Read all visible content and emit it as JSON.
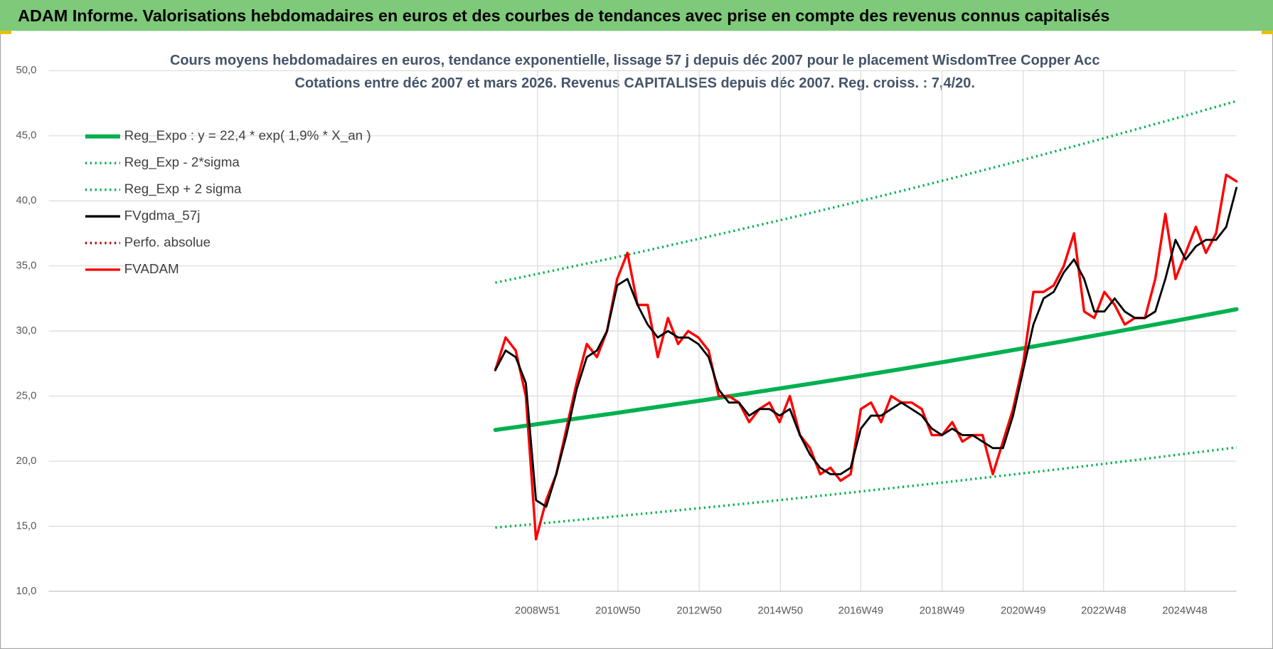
{
  "page_title": "ADAM Informe. Valorisations hebdomadaires en euros et des courbes de tendances avec prise en compte des revenus connus capitalisés",
  "chart_data": {
    "type": "line",
    "title": [
      "Cours moyens hebdomadaires en euros, tendance exponentielle, lissage 57 j depuis déc 2007 pour le placement WisdomTree Copper Acc",
      "Cotations entre déc 2007 et mars 2026. Revenus CAPITALISES depuis déc 2007. Reg. croiss. : 7,4/20."
    ],
    "xlim": [
      "1996W49",
      "2026W10"
    ],
    "xticks": [
      "2008W51",
      "2010W50",
      "2012W50",
      "2014W50",
      "2016W49",
      "2018W49",
      "2020W49",
      "2022W48",
      "2024W48"
    ],
    "ylim": [
      10,
      50
    ],
    "yticks": [
      {
        "value": 10,
        "label": "10,0"
      },
      {
        "value": 15,
        "label": "15,0"
      },
      {
        "value": 20,
        "label": "20,0"
      },
      {
        "value": 25,
        "label": "25,0"
      },
      {
        "value": 30,
        "label": "30,0"
      },
      {
        "value": 35,
        "label": "35,0"
      },
      {
        "value": 40,
        "label": "40,0"
      },
      {
        "value": 45,
        "label": "45,0"
      },
      {
        "value": 50,
        "label": "50,0"
      }
    ],
    "grid": true,
    "legend": "top-left",
    "series": [
      {
        "name": "Reg_Expo : y = 22,4 * exp( 1,9% *  X_an )",
        "color": "#00b050",
        "style": "thick",
        "x": [
          "2007W49",
          "2008W49",
          "2009W49",
          "2010W49",
          "2011W49",
          "2012W49",
          "2013W49",
          "2014W49",
          "2015W49",
          "2016W49",
          "2017W49",
          "2018W49",
          "2019W49",
          "2020W49",
          "2021W49",
          "2022W49",
          "2023W49",
          "2024W49",
          "2025W49",
          "2026W10"
        ],
        "values": [
          22.4,
          22.83,
          23.27,
          23.71,
          24.17,
          24.63,
          25.1,
          25.58,
          26.07,
          26.57,
          27.08,
          27.6,
          28.13,
          28.67,
          29.22,
          29.78,
          30.35,
          30.93,
          31.52,
          31.67
        ]
      },
      {
        "name": "Reg_Exp - 2*sigma",
        "color": "#00b050",
        "style": "dotted",
        "x": [
          "2007W49",
          "2008W49",
          "2009W49",
          "2010W49",
          "2011W49",
          "2012W49",
          "2013W49",
          "2014W49",
          "2015W49",
          "2016W49",
          "2017W49",
          "2018W49",
          "2019W49",
          "2020W49",
          "2021W49",
          "2022W49",
          "2023W49",
          "2024W49",
          "2025W49",
          "2026W10"
        ],
        "values": [
          14.9,
          15.18,
          15.47,
          15.77,
          16.07,
          16.38,
          16.69,
          17.01,
          17.34,
          17.67,
          18.01,
          18.35,
          18.71,
          19.07,
          19.43,
          19.8,
          20.18,
          20.57,
          20.96,
          21.06
        ]
      },
      {
        "name": "Reg_Exp + 2 sigma",
        "color": "#00b050",
        "style": "dotted",
        "x": [
          "2007W49",
          "2008W49",
          "2009W49",
          "2010W49",
          "2011W49",
          "2012W49",
          "2013W49",
          "2014W49",
          "2015W49",
          "2016W49",
          "2017W49",
          "2018W49",
          "2019W49",
          "2020W49",
          "2021W49",
          "2022W49",
          "2023W49",
          "2024W49",
          "2025W49",
          "2026W10"
        ],
        "values": [
          33.71,
          34.36,
          35.02,
          35.68,
          36.38,
          37.07,
          37.78,
          38.5,
          39.24,
          39.99,
          40.76,
          41.54,
          42.34,
          43.15,
          43.98,
          44.82,
          45.68,
          46.55,
          47.44,
          47.66
        ]
      },
      {
        "name": "FVgdma_57j",
        "color": "#000000",
        "style": "solid",
        "x": [
          "2007W49",
          "2008W10",
          "2008W23",
          "2008W36",
          "2008W49",
          "2009W10",
          "2009W23",
          "2009W36",
          "2009W49",
          "2010W10",
          "2010W23",
          "2010W36",
          "2010W49",
          "2011W10",
          "2011W23",
          "2011W36",
          "2011W49",
          "2012W10",
          "2012W23",
          "2012W36",
          "2012W49",
          "2013W10",
          "2013W23",
          "2013W36",
          "2013W49",
          "2014W10",
          "2014W23",
          "2014W36",
          "2014W49",
          "2015W10",
          "2015W23",
          "2015W36",
          "2015W49",
          "2016W10",
          "2016W23",
          "2016W36",
          "2016W49",
          "2017W10",
          "2017W23",
          "2017W36",
          "2017W49",
          "2018W10",
          "2018W23",
          "2018W36",
          "2018W49",
          "2019W10",
          "2019W23",
          "2019W36",
          "2019W49",
          "2020W10",
          "2020W23",
          "2020W36",
          "2020W49",
          "2021W10",
          "2021W23",
          "2021W36",
          "2021W49",
          "2022W10",
          "2022W23",
          "2022W36",
          "2022W49",
          "2023W10",
          "2023W23",
          "2023W36",
          "2023W49",
          "2024W10",
          "2024W23",
          "2024W36",
          "2024W49",
          "2025W10",
          "2025W23",
          "2025W36",
          "2025W49",
          "2026W10"
        ],
        "values": [
          27,
          28.5,
          28,
          26,
          17,
          16.5,
          19,
          22,
          25.5,
          28,
          28.5,
          30,
          33.5,
          34,
          32,
          30.5,
          29.5,
          30,
          29.5,
          29.5,
          29,
          28,
          25.5,
          24.5,
          24.5,
          23.5,
          24,
          24,
          23.5,
          24,
          22,
          20.5,
          19.5,
          19,
          19,
          19.5,
          22.5,
          23.5,
          23.5,
          24,
          24.5,
          24,
          23.5,
          22.5,
          22,
          22.5,
          22,
          22,
          21.5,
          21,
          21,
          23.5,
          27,
          30.5,
          32.5,
          33,
          34.5,
          35.5,
          34,
          31.5,
          31.5,
          32.5,
          31.5,
          31,
          31,
          31.5,
          34,
          37,
          35.5,
          36.5,
          37,
          37,
          38,
          41
        ]
      },
      {
        "name": "Perfo. absolue",
        "color": "#c00000",
        "style": "dotted"
      },
      {
        "name": "FVADAM",
        "color": "#ff0000",
        "style": "solid",
        "x": [
          "2007W49",
          "2008W10",
          "2008W23",
          "2008W36",
          "2008W49",
          "2009W10",
          "2009W23",
          "2009W36",
          "2009W49",
          "2010W10",
          "2010W23",
          "2010W36",
          "2010W49",
          "2011W10",
          "2011W23",
          "2011W36",
          "2011W49",
          "2012W10",
          "2012W23",
          "2012W36",
          "2012W49",
          "2013W10",
          "2013W23",
          "2013W36",
          "2013W49",
          "2014W10",
          "2014W23",
          "2014W36",
          "2014W49",
          "2015W10",
          "2015W23",
          "2015W36",
          "2015W49",
          "2016W10",
          "2016W23",
          "2016W36",
          "2016W49",
          "2017W10",
          "2017W23",
          "2017W36",
          "2017W49",
          "2018W10",
          "2018W23",
          "2018W36",
          "2018W49",
          "2019W10",
          "2019W23",
          "2019W36",
          "2019W49",
          "2020W10",
          "2020W23",
          "2020W36",
          "2020W49",
          "2021W10",
          "2021W23",
          "2021W36",
          "2021W49",
          "2022W10",
          "2022W23",
          "2022W36",
          "2022W49",
          "2023W10",
          "2023W23",
          "2023W36",
          "2023W49",
          "2024W10",
          "2024W23",
          "2024W36",
          "2024W49",
          "2025W10",
          "2025W23",
          "2025W36",
          "2025W49",
          "2026W10"
        ],
        "values": [
          27,
          29.5,
          28.5,
          25,
          14,
          17,
          19,
          22.5,
          26,
          29,
          28,
          30,
          34,
          36,
          32,
          32,
          28,
          31,
          29,
          30,
          29.5,
          28.5,
          25,
          25,
          24.5,
          23,
          24,
          24.5,
          23,
          25,
          22,
          21,
          19,
          19.5,
          18.5,
          19,
          24,
          24.5,
          23,
          25,
          24.5,
          24.5,
          24,
          22,
          22,
          23,
          21.5,
          22,
          22,
          19,
          21.5,
          24,
          27.5,
          33,
          33,
          33.5,
          35,
          37.5,
          31.5,
          31,
          33,
          32,
          30.5,
          31,
          31,
          34,
          39,
          34,
          36,
          38,
          36,
          37.5,
          42,
          41.5
        ]
      }
    ]
  }
}
